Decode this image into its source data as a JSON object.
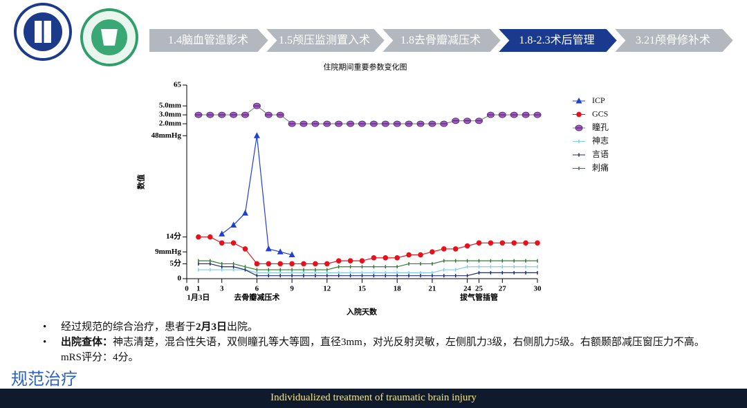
{
  "header": {
    "steps": [
      "1.4脑血管造影术",
      "1.5颅压监测置入术",
      "1.8去骨瓣减压术",
      "1.8-2.3术后管理",
      "3.21颅骨修补术"
    ],
    "active": 3
  },
  "chart_data": {
    "type": "line",
    "title": "住院期间重要参数变化图",
    "x_label": "入院天数",
    "y_label": "数值",
    "x": [
      1,
      2,
      3,
      4,
      5,
      6,
      7,
      8,
      9,
      10,
      11,
      12,
      13,
      14,
      15,
      16,
      17,
      18,
      19,
      20,
      21,
      22,
      23,
      24,
      25,
      26,
      27,
      28,
      29,
      30
    ],
    "xlim": [
      0,
      30
    ],
    "xticks": [
      0,
      1,
      3,
      6,
      9,
      12,
      15,
      18,
      21,
      24,
      25,
      27,
      30
    ],
    "ylim": [
      0,
      65
    ],
    "yticks": [
      0,
      {
        "value": 5,
        "label": "5分"
      },
      {
        "value": 9,
        "label": "9mmHg"
      },
      {
        "value": 14,
        "label": "14分"
      },
      {
        "value": 48,
        "label": "48mmHg"
      },
      {
        "value": 52,
        "label": "2.0mm"
      },
      {
        "value": 55,
        "label": "3.0mm"
      },
      {
        "value": 58,
        "label": "5.0mm"
      },
      65
    ],
    "legend": "right",
    "series": [
      {
        "name": "ICP",
        "color": "#1f3fd6",
        "marker": "triangle",
        "values": [
          null,
          null,
          15,
          18,
          22,
          48,
          10,
          9,
          8,
          null,
          null,
          null,
          null,
          null,
          null,
          null,
          null,
          null,
          null,
          null,
          null,
          null,
          null,
          null,
          null,
          null,
          null,
          null,
          null,
          null
        ]
      },
      {
        "name": "GCS",
        "color": "#e8101a",
        "marker": "circle",
        "values": [
          14,
          14,
          12,
          12,
          10,
          5,
          5,
          5,
          5,
          5,
          5,
          5,
          6,
          6,
          6,
          7,
          7,
          7,
          8,
          8,
          9,
          10,
          10,
          11,
          12,
          12,
          12,
          12,
          12,
          12
        ]
      },
      {
        "name": "瞳孔",
        "color": "#a45cc8",
        "marker": "eye",
        "values": [
          55,
          55,
          55,
          55,
          55,
          58,
          55,
          55,
          52,
          52,
          52,
          52,
          52,
          52,
          52,
          52,
          52,
          52,
          52,
          52,
          52,
          52,
          53,
          53,
          53,
          55,
          55,
          55,
          55,
          55
        ]
      },
      {
        "name": "神志",
        "color": "#7fcfe6",
        "marker": "tick",
        "values": [
          3,
          3,
          3,
          3,
          3,
          2,
          2,
          2,
          2,
          2,
          2,
          2,
          2,
          2,
          2,
          2,
          2,
          2,
          2,
          2,
          2,
          3,
          3,
          4,
          4,
          4,
          4,
          4,
          4,
          4
        ]
      },
      {
        "name": "言语",
        "color": "#1c2a6b",
        "marker": "tick",
        "values": [
          5,
          5,
          4,
          4,
          3,
          1,
          1,
          1,
          1,
          1,
          1,
          1,
          1,
          1,
          1,
          1,
          1,
          1,
          1,
          1,
          1,
          1,
          1,
          1,
          2,
          2,
          2,
          2,
          2,
          2
        ]
      },
      {
        "name": "刺痛",
        "color": "#2e7d32",
        "marker": "tick",
        "values": [
          6,
          6,
          5,
          5,
          4,
          3,
          3,
          3,
          3,
          3,
          3,
          3,
          4,
          4,
          4,
          4,
          4,
          4,
          5,
          5,
          5,
          6,
          6,
          6,
          6,
          6,
          6,
          6,
          6,
          6
        ]
      }
    ],
    "annotations": [
      {
        "x": 1,
        "text": "1月3日"
      },
      {
        "x": 6,
        "text": "去骨瓣减压术"
      },
      {
        "x": 25,
        "text": "拔气管插管"
      }
    ]
  },
  "bullets": [
    [
      "经过规范的综合治疗，患者于",
      "2月3日",
      "出院。"
    ],
    [
      "出院查体：",
      "神志清楚，混合性失语，双侧瞳孔等大等圆，直径3mm，对光反射灵敏，左侧肌力3级，右侧肌力5级。右额颞部减压窗压力不高。mRS评分：4分。"
    ]
  ],
  "footer": {
    "section": "规范治疗",
    "caption": "Individualized treatment of traumatic brain injury"
  }
}
